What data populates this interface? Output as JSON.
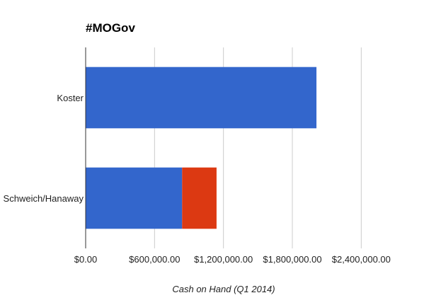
{
  "chart_data": {
    "type": "bar",
    "orientation": "horizontal",
    "stacked": true,
    "title": "#MOGov",
    "xlabel": "Cash on Hand (Q1 2014)",
    "ylabel": "",
    "categories": [
      "Koster",
      "Schweich/Hanaway"
    ],
    "series": [
      {
        "values": [
          2010000,
          840000
        ],
        "color": "#3366cc"
      },
      {
        "values": [
          0,
          300000
        ],
        "color": "#dc3912"
      }
    ],
    "xlim": [
      0,
      2700000
    ],
    "x_ticks": [
      0,
      600000,
      1200000,
      1800000,
      2400000
    ],
    "x_tick_labels": [
      "$0.00",
      "$600,000.00",
      "$1,200,000.00",
      "$1,800,000.00",
      "$2,400,000.00"
    ],
    "grid": true,
    "legend": "none"
  }
}
